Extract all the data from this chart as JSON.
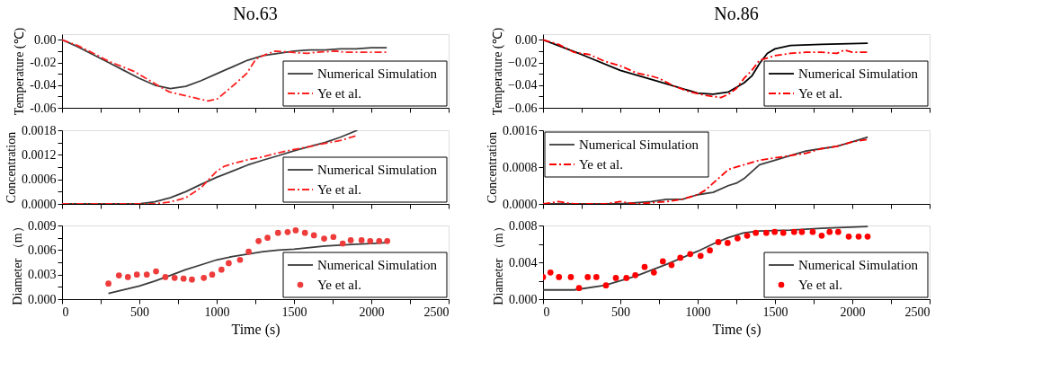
{
  "chart_data": [
    {
      "type": "line",
      "title": "No.63",
      "ylabel": "Temperature (℃)",
      "xlim": [
        0,
        2500
      ],
      "ylim": [
        -0.06,
        0.005
      ],
      "tick_labels": "y",
      "legend": "bottom right",
      "xticks": [
        {
          "value": 0,
          "label": null
        },
        {
          "value": 250,
          "label": null
        },
        {
          "value": 500,
          "label": null
        },
        {
          "value": 750,
          "label": null
        },
        {
          "value": 1000,
          "label": null
        },
        {
          "value": 1250,
          "label": null
        },
        {
          "value": 1500,
          "label": null
        },
        {
          "value": 1750,
          "label": null
        },
        {
          "value": 2000,
          "label": null
        },
        {
          "value": 2250,
          "label": null
        },
        {
          "value": 2500,
          "label": null
        }
      ],
      "yticks": [
        {
          "value": 0,
          "label": "0.00"
        },
        {
          "value": -0.01,
          "label": null
        },
        {
          "value": -0.02,
          "label": "-0.02"
        },
        {
          "value": -0.03,
          "label": null
        },
        {
          "value": -0.04,
          "label": "-0.04"
        },
        {
          "value": -0.05,
          "label": null
        },
        {
          "value": -0.06,
          "label": "-0.06"
        }
      ],
      "series": [
        {
          "name": "Numerical Simulation",
          "color": "#3c3c3c",
          "line_style": "solid",
          "x": [
            0,
            100,
            200,
            300,
            400,
            500,
            600,
            700,
            800,
            900,
            1000,
            1100,
            1200,
            1300,
            1400,
            1500,
            1600,
            1700,
            1800,
            1900,
            2000,
            2100
          ],
          "values": [
            0,
            -0.006,
            -0.013,
            -0.02,
            -0.027,
            -0.034,
            -0.04,
            -0.043,
            -0.041,
            -0.036,
            -0.03,
            -0.024,
            -0.018,
            -0.014,
            -0.012,
            -0.01,
            -0.009,
            -0.009,
            -0.008,
            -0.008,
            -0.007,
            -0.007
          ]
        },
        {
          "name": "Ye et al.",
          "color": "#ff2020",
          "line_style": "dashed",
          "x": [
            0,
            100,
            219,
            302,
            468,
            654,
            695,
            944,
            1006,
            1110,
            1192,
            1254,
            1316,
            1378,
            1482,
            1585,
            1647,
            1772,
            1834,
            1979,
            2103
          ],
          "values": [
            0,
            -0.005,
            -0.013,
            -0.019,
            -0.028,
            -0.043,
            -0.046,
            -0.054,
            -0.052,
            -0.04,
            -0.03,
            -0.017,
            -0.013,
            -0.01,
            -0.011,
            -0.012,
            -0.011,
            -0.01,
            -0.011,
            -0.011,
            -0.011
          ]
        }
      ]
    },
    {
      "type": "line",
      "title": "No.86",
      "ylabel": "Temperature (℃)",
      "xlim": [
        0,
        2500
      ],
      "ylim": [
        -0.06,
        0.005
      ],
      "tick_labels": "y",
      "legend": "bottom right",
      "xticks": [
        {
          "value": 0,
          "label": null
        },
        {
          "value": 250,
          "label": null
        },
        {
          "value": 500,
          "label": null
        },
        {
          "value": 750,
          "label": null
        },
        {
          "value": 1000,
          "label": null
        },
        {
          "value": 1250,
          "label": null
        },
        {
          "value": 1500,
          "label": null
        },
        {
          "value": 1750,
          "label": null
        },
        {
          "value": 2000,
          "label": null
        },
        {
          "value": 2250,
          "label": null
        },
        {
          "value": 2500,
          "label": null
        }
      ],
      "yticks": [
        {
          "value": 0,
          "label": "0.00"
        },
        {
          "value": -0.01,
          "label": null
        },
        {
          "value": -0.02,
          "label": "−0.02"
        },
        {
          "value": -0.03,
          "label": null
        },
        {
          "value": -0.04,
          "label": "−0.04"
        },
        {
          "value": -0.05,
          "label": null
        },
        {
          "value": -0.06,
          "label": "−0.06"
        }
      ],
      "series": [
        {
          "name": "Numerical Simulation",
          "color": "#000000",
          "line_style": "solid",
          "x": [
            0,
            250,
            500,
            750,
            1000,
            1100,
            1200,
            1250,
            1300,
            1350,
            1400,
            1450,
            1500,
            1600,
            1800,
            2100
          ],
          "values": [
            0,
            -0.013,
            -0.027,
            -0.037,
            -0.047,
            -0.048,
            -0.046,
            -0.042,
            -0.038,
            -0.032,
            -0.021,
            -0.012,
            -0.008,
            -0.005,
            -0.004,
            -0.003
          ]
        },
        {
          "name": "Ye et al.",
          "color": "#ff0000",
          "line_style": "dashed",
          "x": [
            0,
            100,
            200,
            300,
            400,
            500,
            600,
            700,
            750,
            850,
            950,
            1050,
            1150,
            1200,
            1250,
            1300,
            1350,
            1400,
            1500,
            1600,
            1700,
            1800,
            1900,
            1950,
            2000,
            2100
          ],
          "values": [
            0,
            -0.004,
            -0.011,
            -0.013,
            -0.019,
            -0.023,
            -0.029,
            -0.032,
            -0.034,
            -0.041,
            -0.046,
            -0.049,
            -0.051,
            -0.048,
            -0.043,
            -0.034,
            -0.027,
            -0.018,
            -0.014,
            -0.012,
            -0.011,
            -0.011,
            -0.012,
            -0.009,
            -0.011,
            -0.011
          ]
        }
      ]
    },
    {
      "type": "line",
      "ylabel": "Concentration",
      "xlim": [
        0,
        2500
      ],
      "ylim": [
        0,
        0.0018
      ],
      "tick_labels": "y",
      "legend": "bottom right",
      "xticks": [
        {
          "value": 0,
          "label": null
        },
        {
          "value": 250,
          "label": null
        },
        {
          "value": 500,
          "label": null
        },
        {
          "value": 750,
          "label": null
        },
        {
          "value": 1000,
          "label": null
        },
        {
          "value": 1250,
          "label": null
        },
        {
          "value": 1500,
          "label": null
        },
        {
          "value": 1750,
          "label": null
        },
        {
          "value": 2000,
          "label": null
        },
        {
          "value": 2250,
          "label": null
        },
        {
          "value": 2500,
          "label": null
        }
      ],
      "yticks": [
        {
          "value": 0,
          "label": "0.0000"
        },
        {
          "value": 0.0003,
          "label": null
        },
        {
          "value": 0.0006,
          "label": "0.0006"
        },
        {
          "value": 0.0009,
          "label": null
        },
        {
          "value": 0.0012,
          "label": "0.0012"
        },
        {
          "value": 0.0015,
          "label": null
        },
        {
          "value": 0.0018,
          "label": "0.0018"
        }
      ],
      "series": [
        {
          "name": "Numerical Simulation",
          "color": "#3c3c3c",
          "line_style": "solid",
          "x": [
            0,
            300,
            500,
            600,
            700,
            800,
            900,
            1000,
            1100,
            1200,
            1300,
            1400,
            1500,
            1600,
            1700,
            1800,
            1910
          ],
          "values": [
            0,
            0,
            0,
            5e-05,
            0.00015,
            0.0003,
            0.00048,
            0.00065,
            0.0008,
            0.00095,
            0.00107,
            0.00118,
            0.0013,
            0.0014,
            0.0015,
            0.00163,
            0.0018
          ]
        },
        {
          "name": "Ye et al.",
          "color": "#ff2020",
          "line_style": "dashed",
          "x": [
            0,
            600,
            700,
            800,
            900,
            950,
            1000,
            1050,
            1100,
            1200,
            1300,
            1400,
            1500,
            1600,
            1700,
            1800,
            1900
          ],
          "values": [
            0,
            0,
            5e-05,
            0.00015,
            0.0004,
            0.0006,
            0.0008,
            0.00092,
            0.00098,
            0.00108,
            0.00115,
            0.00125,
            0.00133,
            0.0014,
            0.00148,
            0.00155,
            0.00166
          ]
        }
      ]
    },
    {
      "type": "line",
      "ylabel": "Concentration",
      "xlim": [
        0,
        2500
      ],
      "ylim": [
        0,
        0.0016
      ],
      "tick_labels": "y",
      "legend": "top left",
      "xticks": [
        {
          "value": 0,
          "label": null
        },
        {
          "value": 250,
          "label": null
        },
        {
          "value": 500,
          "label": null
        },
        {
          "value": 750,
          "label": null
        },
        {
          "value": 1000,
          "label": null
        },
        {
          "value": 1250,
          "label": null
        },
        {
          "value": 1500,
          "label": null
        },
        {
          "value": 1750,
          "label": null
        },
        {
          "value": 2000,
          "label": null
        },
        {
          "value": 2250,
          "label": null
        },
        {
          "value": 2500,
          "label": null
        }
      ],
      "yticks": [
        {
          "value": 0,
          "label": "0.0000"
        },
        {
          "value": 0.0008,
          "label": "0.0008"
        },
        {
          "value": 0.0016,
          "label": "0.0016"
        }
      ],
      "series": [
        {
          "name": "Numerical Simulation",
          "color": "#3c3c3c",
          "line_style": "solid",
          "x": [
            0,
            500,
            700,
            800,
            900,
            1000,
            1100,
            1200,
            1250,
            1300,
            1350,
            1400,
            1500,
            1600,
            1700,
            1800,
            1900,
            2000,
            2100
          ],
          "values": [
            0,
            0,
            5e-05,
            0.0001,
            0.0001,
            0.0002,
            0.00025,
            0.0004,
            0.00045,
            0.00055,
            0.0007,
            0.00085,
            0.00095,
            0.00105,
            0.00115,
            0.0012,
            0.00125,
            0.00135,
            0.00145
          ]
        },
        {
          "name": "Ye et al.",
          "color": "#ff0000",
          "line_style": "dashed",
          "x": [
            0,
            100,
            200,
            300,
            400,
            500,
            600,
            800,
            900,
            1000,
            1050,
            1100,
            1150,
            1200,
            1300,
            1400,
            1500,
            1600,
            1700,
            1800,
            1900,
            2000,
            2100
          ],
          "values": [
            0,
            5e-05,
            0,
            0,
            0,
            5e-05,
            0,
            5e-05,
            0.0001,
            0.0002,
            0.0003,
            0.00045,
            0.0006,
            0.00075,
            0.00085,
            0.00095,
            0.001,
            0.00105,
            0.0011,
            0.0012,
            0.00125,
            0.00135,
            0.0014
          ]
        }
      ]
    },
    {
      "type": "line",
      "ylabel": "Diameter （m）",
      "xlabel": "Time (s)",
      "xlim": [
        0,
        2500
      ],
      "ylim": [
        0,
        0.009
      ],
      "legend": "bottom right",
      "xticks": [
        0,
        {
          "value": 250,
          "label": null
        },
        500,
        {
          "value": 750,
          "label": null
        },
        1000,
        {
          "value": 1250,
          "label": null
        },
        1500,
        {
          "value": 1750,
          "label": null
        },
        2000,
        {
          "value": 2250,
          "label": null
        },
        2500
      ],
      "yticks": [
        {
          "value": 0,
          "label": "0.000"
        },
        {
          "value": 0.0015,
          "label": null
        },
        {
          "value": 0.003,
          "label": "0.003"
        },
        {
          "value": 0.0045,
          "label": null
        },
        {
          "value": 0.006,
          "label": "0.006"
        },
        {
          "value": 0.0075,
          "label": null
        },
        {
          "value": 0.009,
          "label": "0.009"
        }
      ],
      "series": [
        {
          "name": "Numerical Simulation",
          "color": "#3c3c3c",
          "line_style": "solid",
          "x": [
            300,
            500,
            600,
            700,
            800,
            900,
            1000,
            1100,
            1200,
            1300,
            1400,
            1500,
            1600,
            1700,
            1800,
            1900,
            2000,
            2100
          ],
          "values": [
            0.0007,
            0.0016,
            0.0022,
            0.0029,
            0.0036,
            0.0042,
            0.0048,
            0.0052,
            0.0055,
            0.0058,
            0.006,
            0.0061,
            0.0063,
            0.0065,
            0.0066,
            0.0067,
            0.0068,
            0.0069
          ]
        },
        {
          "name": "Ye et al.",
          "type": "scatter",
          "marker": "circle",
          "color": "#ee3b3b",
          "x": [
            300,
            368,
            426,
            484,
            548,
            608,
            668,
            728,
            786,
            840,
            917,
            971,
            1031,
            1078,
            1151,
            1207,
            1271,
            1329,
            1397,
            1459,
            1511,
            1571,
            1629,
            1695,
            1755,
            1815,
            1867,
            1937,
            1993,
            2051,
            2103
          ],
          "values": [
            0.0019,
            0.0029,
            0.0027,
            0.003,
            0.003,
            0.0034,
            0.0027,
            0.0026,
            0.0025,
            0.0024,
            0.0026,
            0.003,
            0.0036,
            0.0044,
            0.0048,
            0.0058,
            0.0071,
            0.0075,
            0.0081,
            0.0082,
            0.0084,
            0.0081,
            0.0078,
            0.0074,
            0.0076,
            0.0068,
            0.0072,
            0.0072,
            0.0071,
            0.0071,
            0.0071
          ]
        }
      ]
    },
    {
      "type": "line",
      "ylabel": "Diameter （m）",
      "xlabel": "Time (s)",
      "xlim": [
        0,
        2500
      ],
      "ylim": [
        0,
        0.008
      ],
      "legend": "bottom right",
      "xticks": [
        0,
        {
          "value": 250,
          "label": null
        },
        500,
        {
          "value": 750,
          "label": null
        },
        1000,
        {
          "value": 1250,
          "label": null
        },
        1500,
        {
          "value": 1750,
          "label": null
        },
        2000,
        {
          "value": 2250,
          "label": null
        },
        2500
      ],
      "yticks": [
        {
          "value": 0,
          "label": "0.000"
        },
        {
          "value": 0.002,
          "label": null
        },
        {
          "value": 0.004,
          "label": "0.004"
        },
        {
          "value": 0.006,
          "label": null
        },
        {
          "value": 0.008,
          "label": "0.008"
        }
      ],
      "series": [
        {
          "name": "Numerical Simulation",
          "color": "#3c3c3c",
          "line_style": "solid",
          "x": [
            0,
            200,
            400,
            600,
            800,
            1000,
            1100,
            1200,
            1300,
            1400,
            1600,
            1800,
            2100
          ],
          "values": [
            0.001,
            0.001,
            0.0015,
            0.0025,
            0.0038,
            0.0052,
            0.006,
            0.0067,
            0.0072,
            0.0074,
            0.0075,
            0.0077,
            0.0079
          ]
        },
        {
          "name": "Ye et al.",
          "type": "scatter",
          "marker": "circle",
          "color": "#ff0000",
          "x": [
            0,
            48,
            103,
            180,
            233,
            289,
            345,
            407,
            471,
            539,
            597,
            657,
            717,
            775,
            831,
            888,
            952,
            1019,
            1079,
            1134,
            1194,
            1258,
            1320,
            1376,
            1444,
            1498,
            1554,
            1624,
            1674,
            1744,
            1802,
            1853,
            1909,
            1977,
            2041,
            2099
          ],
          "values": [
            0.0024,
            0.0029,
            0.0024,
            0.0024,
            0.0012,
            0.0024,
            0.0024,
            0.0015,
            0.0023,
            0.0023,
            0.0026,
            0.0035,
            0.0029,
            0.0041,
            0.0037,
            0.0045,
            0.0049,
            0.0047,
            0.0053,
            0.0062,
            0.0061,
            0.0066,
            0.0069,
            0.0072,
            0.0072,
            0.0073,
            0.0072,
            0.0073,
            0.0073,
            0.0073,
            0.0069,
            0.0073,
            0.0073,
            0.0068,
            0.0068,
            0.0068
          ]
        }
      ]
    }
  ]
}
